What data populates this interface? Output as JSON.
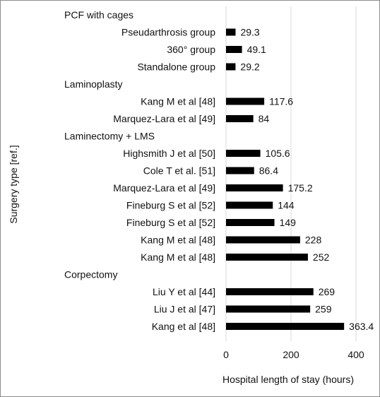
{
  "chart_data": {
    "type": "bar",
    "orientation": "horizontal",
    "xlabel": "Hospital length of stay (hours)",
    "ylabel": "Surgery type [ref.]",
    "xlim": [
      0,
      400
    ],
    "xticks": [
      "0",
      "200",
      "400"
    ],
    "grid": true,
    "bar_color": "#000000",
    "rows": [
      {
        "kind": "group",
        "label": "PCF with cages"
      },
      {
        "kind": "bar",
        "label": "Pseudarthrosis group",
        "value": 29.3,
        "value_label": "29.3"
      },
      {
        "kind": "bar",
        "label": "360° group",
        "value": 49.1,
        "value_label": "49.1"
      },
      {
        "kind": "bar",
        "label": "Standalone group",
        "value": 29.2,
        "value_label": "29.2"
      },
      {
        "kind": "group",
        "label": "Laminoplasty"
      },
      {
        "kind": "bar",
        "label": "Kang M et al [48]",
        "value": 117.6,
        "value_label": "117.6"
      },
      {
        "kind": "bar",
        "label": "Marquez-Lara et al [49]",
        "value": 84,
        "value_label": "84"
      },
      {
        "kind": "group",
        "label": "Laminectomy + LMS"
      },
      {
        "kind": "bar",
        "label": "Highsmith J et al [50]",
        "value": 105.6,
        "value_label": "105.6"
      },
      {
        "kind": "bar",
        "label": "Cole T et al. [51]",
        "value": 86.4,
        "value_label": "86.4"
      },
      {
        "kind": "bar",
        "label": "Marquez-Lara et al [49]",
        "value": 175.2,
        "value_label": "175.2"
      },
      {
        "kind": "bar",
        "label": "Fineburg S et al [52]",
        "value": 144,
        "value_label": "144"
      },
      {
        "kind": "bar",
        "label": "Fineburg S et al [52]",
        "value": 149,
        "value_label": "149"
      },
      {
        "kind": "bar",
        "label": "Kang M et al [48]",
        "value": 228,
        "value_label": "228"
      },
      {
        "kind": "bar",
        "label": "Kang M et al [48]",
        "value": 252,
        "value_label": "252"
      },
      {
        "kind": "group",
        "label": "Corpectomy"
      },
      {
        "kind": "bar",
        "label": "Liu Y et al [44]",
        "value": 269,
        "value_label": "269"
      },
      {
        "kind": "bar",
        "label": "Liu J et al [47]",
        "value": 259,
        "value_label": "259"
      },
      {
        "kind": "bar",
        "label": "Kang et al [48]",
        "value": 363.4,
        "value_label": "363.4"
      }
    ]
  }
}
